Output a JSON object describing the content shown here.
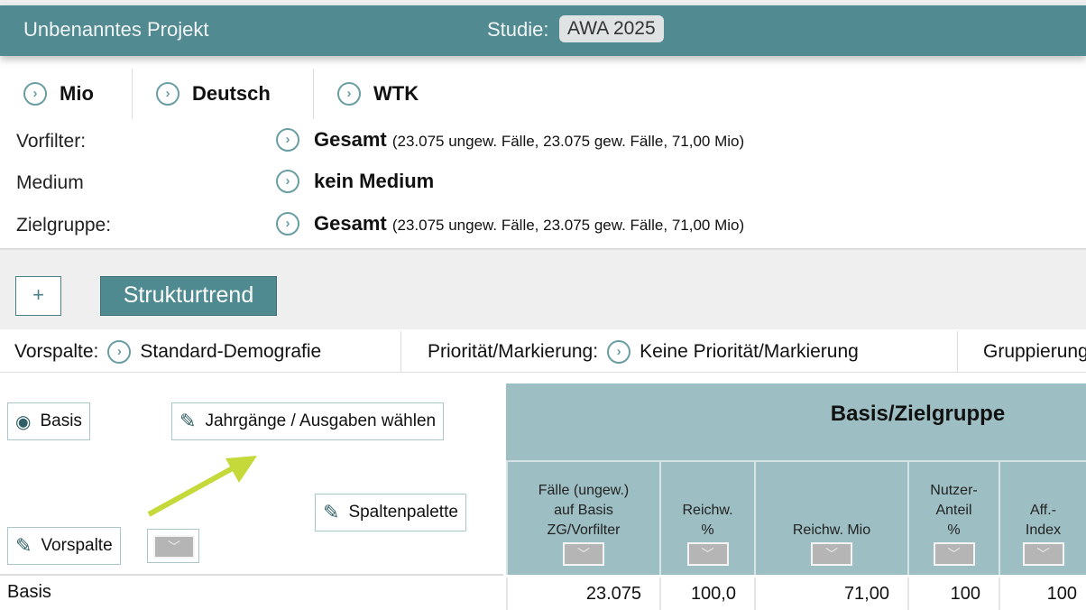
{
  "header": {
    "project": "Unbenanntes Projekt",
    "study_label": "Studie:",
    "study": "AWA 2025"
  },
  "tabs": [
    {
      "label": "Mio"
    },
    {
      "label": "Deutsch"
    },
    {
      "label": "WTK"
    }
  ],
  "filters": [
    {
      "label": "Vorfilter:",
      "value": "Gesamt",
      "detail": "(23.075 ungew. Fälle, 23.075 gew. Fälle, 71,00 Mio)"
    },
    {
      "label": "Medium",
      "value": "kein Medium",
      "detail": ""
    },
    {
      "label": "Zielgruppe:",
      "value": "Gesamt",
      "detail": "(23.075 ungew. Fälle, 23.075 gew. Fälle, 71,00 Mio)"
    }
  ],
  "toolbar": {
    "add": "+",
    "strukturtrend": "Strukturtrend"
  },
  "settings": {
    "vorspalte_label": "Vorspalte:",
    "vorspalte": "Standard-Demografie",
    "prio_label": "Priorität/Markierung:",
    "prio": "Keine Priorität/Markierung",
    "grupp_label": "Gruppierung"
  },
  "options": {
    "basis": "Basis",
    "jahrgaenge": "Jahrgänge / Ausgaben wählen",
    "spaltenpalette": "Spaltenpalette",
    "vorspalte": "Vorspalte"
  },
  "table": {
    "group": "Basis/Zielgruppe",
    "columns": [
      "Fälle (ungew.)\nauf Basis\nZG/Vorfilter",
      "Reichw.\n%",
      "Reichw. Mio",
      "Nutzer-\nAnteil\n%",
      "Aff.-\nIndex"
    ],
    "rows": [
      {
        "label": "Basis",
        "values": [
          "23.075",
          "100,0",
          "71,00",
          "100",
          "100"
        ]
      }
    ]
  },
  "colors": {
    "accent": "#528a91",
    "table_header": "#9dbfc3",
    "arrow": "#c5d93a"
  }
}
